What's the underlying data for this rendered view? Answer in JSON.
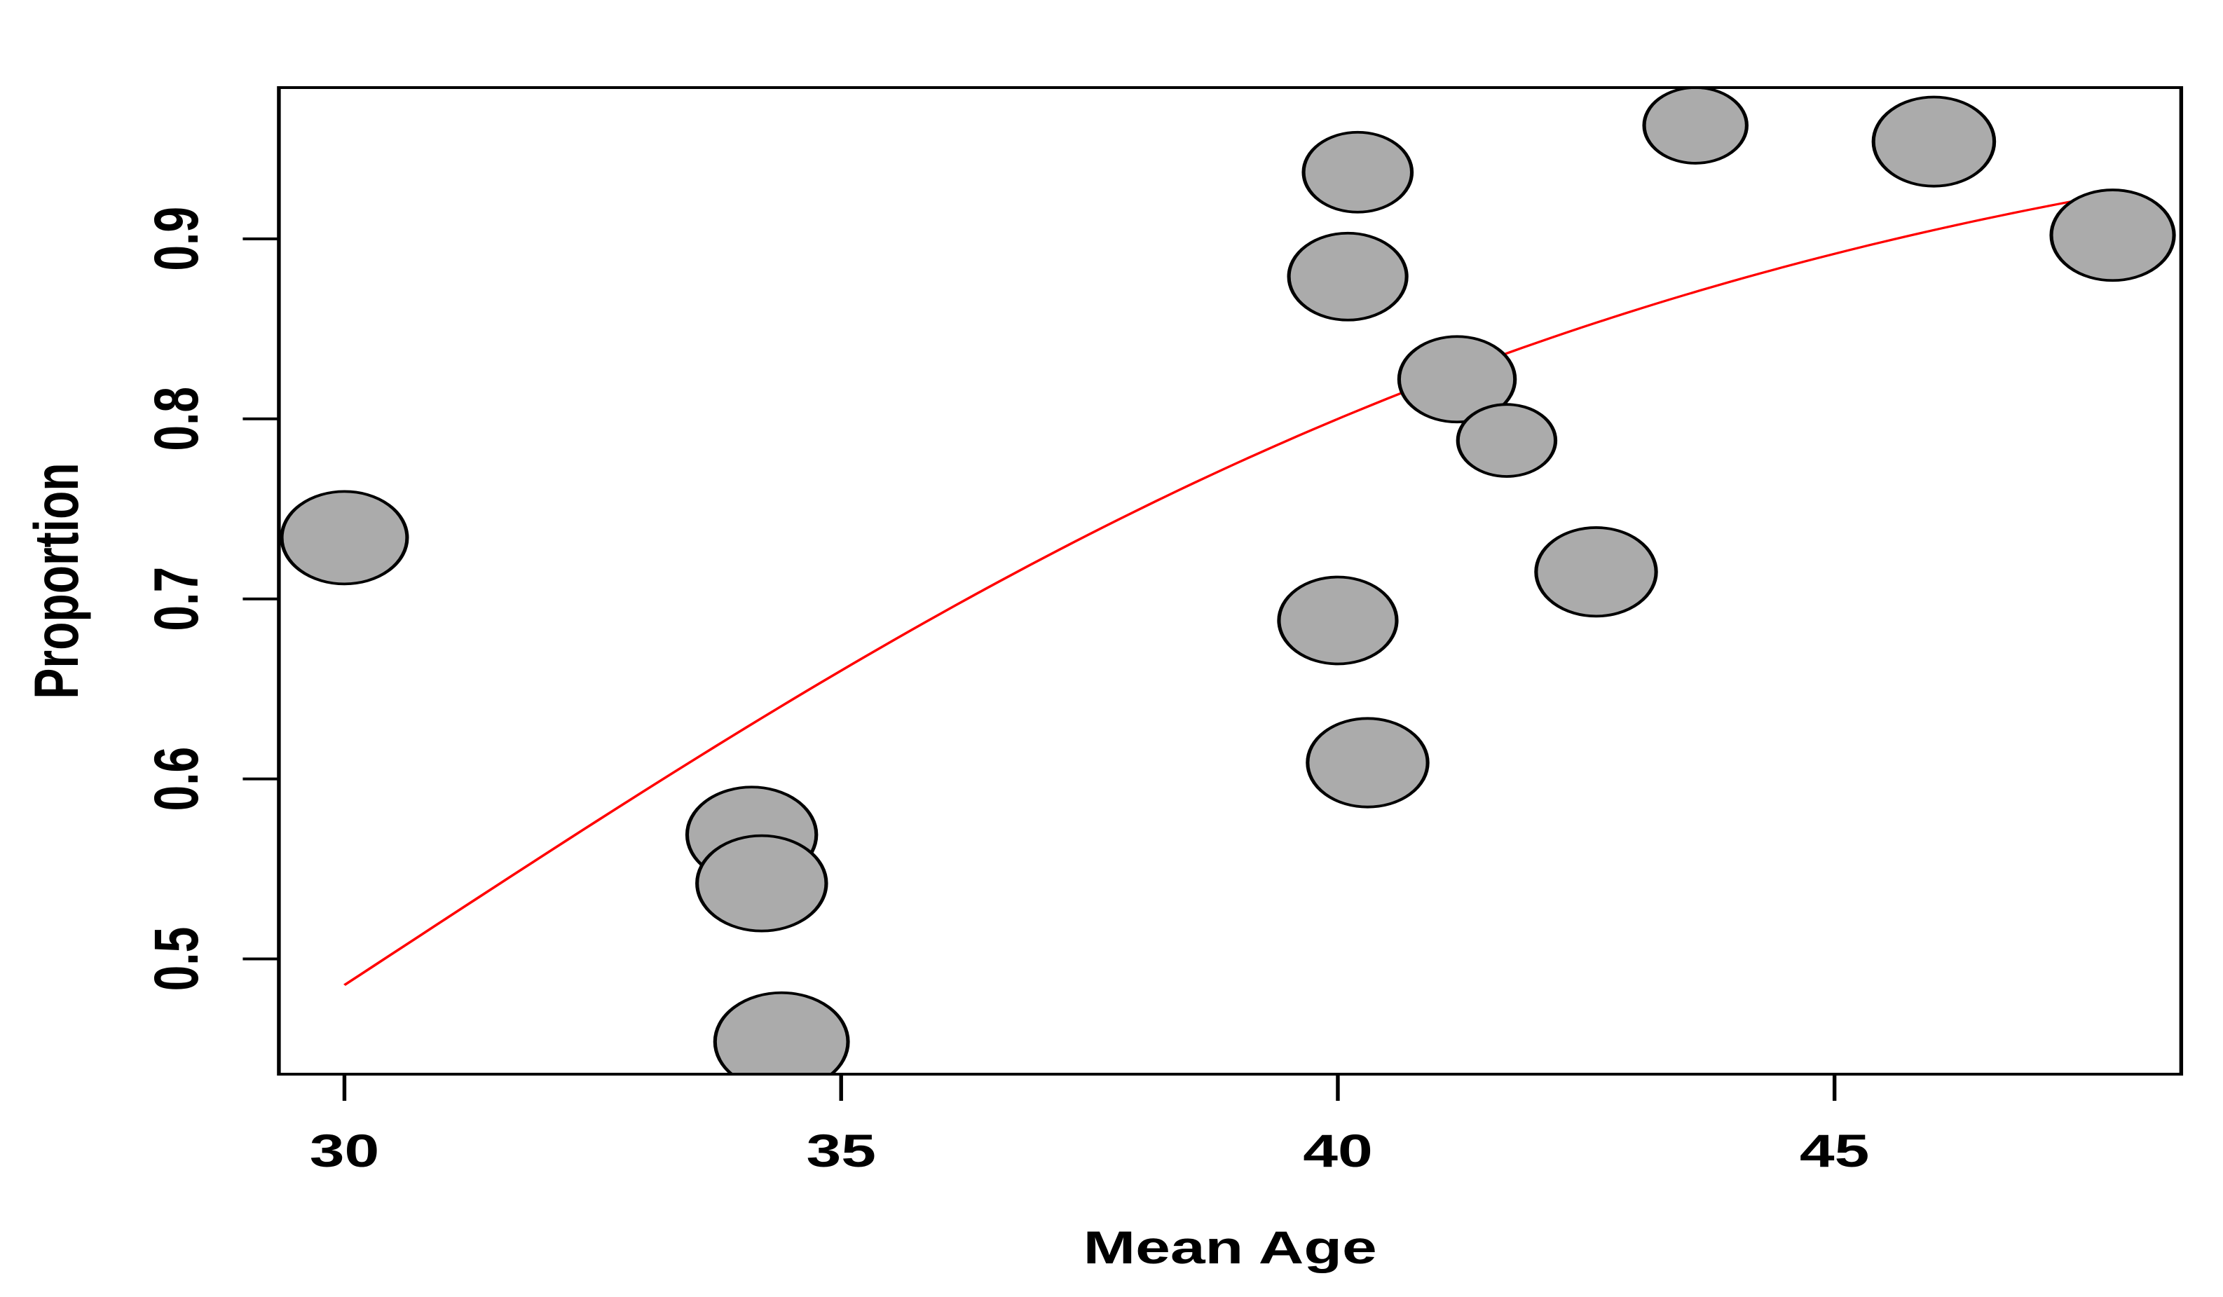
{
  "figure": {
    "background": "#FFFFFF",
    "description": "Bubble plot of study proportions versus mean age with fitted meta-regression curve"
  },
  "chart_data": {
    "type": "scatter",
    "subtype": "bubble",
    "title": "",
    "xlabel": "Mean Age",
    "ylabel": "Proportion",
    "x_ticks": [
      30,
      35,
      40,
      45
    ],
    "y_ticks": [
      0.5,
      0.6,
      0.7,
      0.8,
      0.9
    ],
    "x_range": [
      29.34,
      48.49
    ],
    "y_range": [
      0.436,
      0.984
    ],
    "grid": false,
    "legend": null,
    "point_style": {
      "fill": "#ABABAB",
      "stroke": "#000000"
    },
    "points": [
      {
        "age": 30.0,
        "proportion": 0.734,
        "size": 33.0
      },
      {
        "age": 34.1,
        "proportion": 0.569,
        "size": 34.0
      },
      {
        "age": 34.2,
        "proportion": 0.542,
        "size": 34.0
      },
      {
        "age": 34.4,
        "proportion": 0.454,
        "size": 35.0
      },
      {
        "age": 40.2,
        "proportion": 0.937,
        "size": 28.5
      },
      {
        "age": 40.1,
        "proportion": 0.879,
        "size": 31.0
      },
      {
        "age": 41.2,
        "proportion": 0.822,
        "size": 30.5
      },
      {
        "age": 41.7,
        "proportion": 0.788,
        "size": 25.7
      },
      {
        "age": 42.6,
        "proportion": 0.715,
        "size": 31.6
      },
      {
        "age": 40.0,
        "proportion": 0.688,
        "size": 31.0
      },
      {
        "age": 40.3,
        "proportion": 0.609,
        "size": 31.6
      },
      {
        "age": 43.6,
        "proportion": 0.963,
        "size": 27.0
      },
      {
        "age": 46.0,
        "proportion": 0.954,
        "size": 31.8
      },
      {
        "age": 47.8,
        "proportion": 0.902,
        "size": 32.3
      }
    ],
    "regression_line": {
      "model": "logistic",
      "intercept": -4.39,
      "slope": 0.1444,
      "x_start": 30.0,
      "x_end": 47.8,
      "color": "#FF0000"
    }
  }
}
